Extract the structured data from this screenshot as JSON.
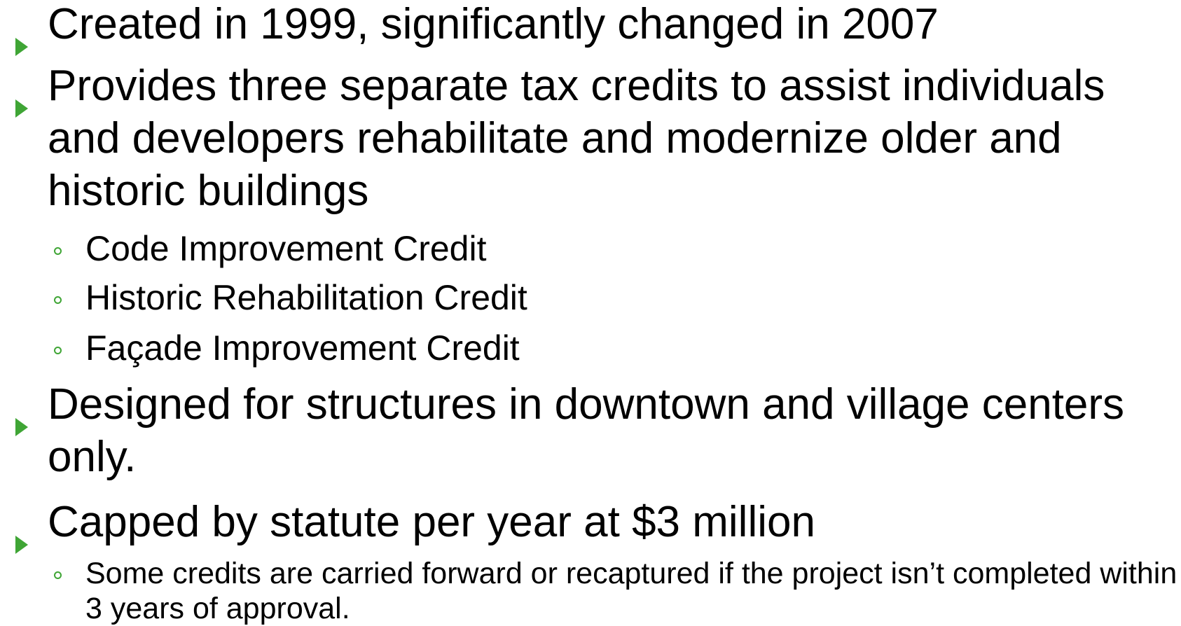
{
  "bullets": [
    {
      "text": "Created in 1999, significantly changed in 2007"
    },
    {
      "text": "Provides three separate tax credits to assist individuals and developers rehabilitate and modernize older and historic buildings",
      "sub": [
        "Code Improvement Credit",
        "Historic Rehabilitation Credit",
        "Façade Improvement Credit"
      ]
    },
    {
      "text": "Designed for structures in downtown and village centers only."
    },
    {
      "text": "Capped by statute per year at $3 million",
      "sub": [
        "Some credits are carried forward or recaptured if the project isn’t completed within 3 years of approval."
      ]
    }
  ]
}
